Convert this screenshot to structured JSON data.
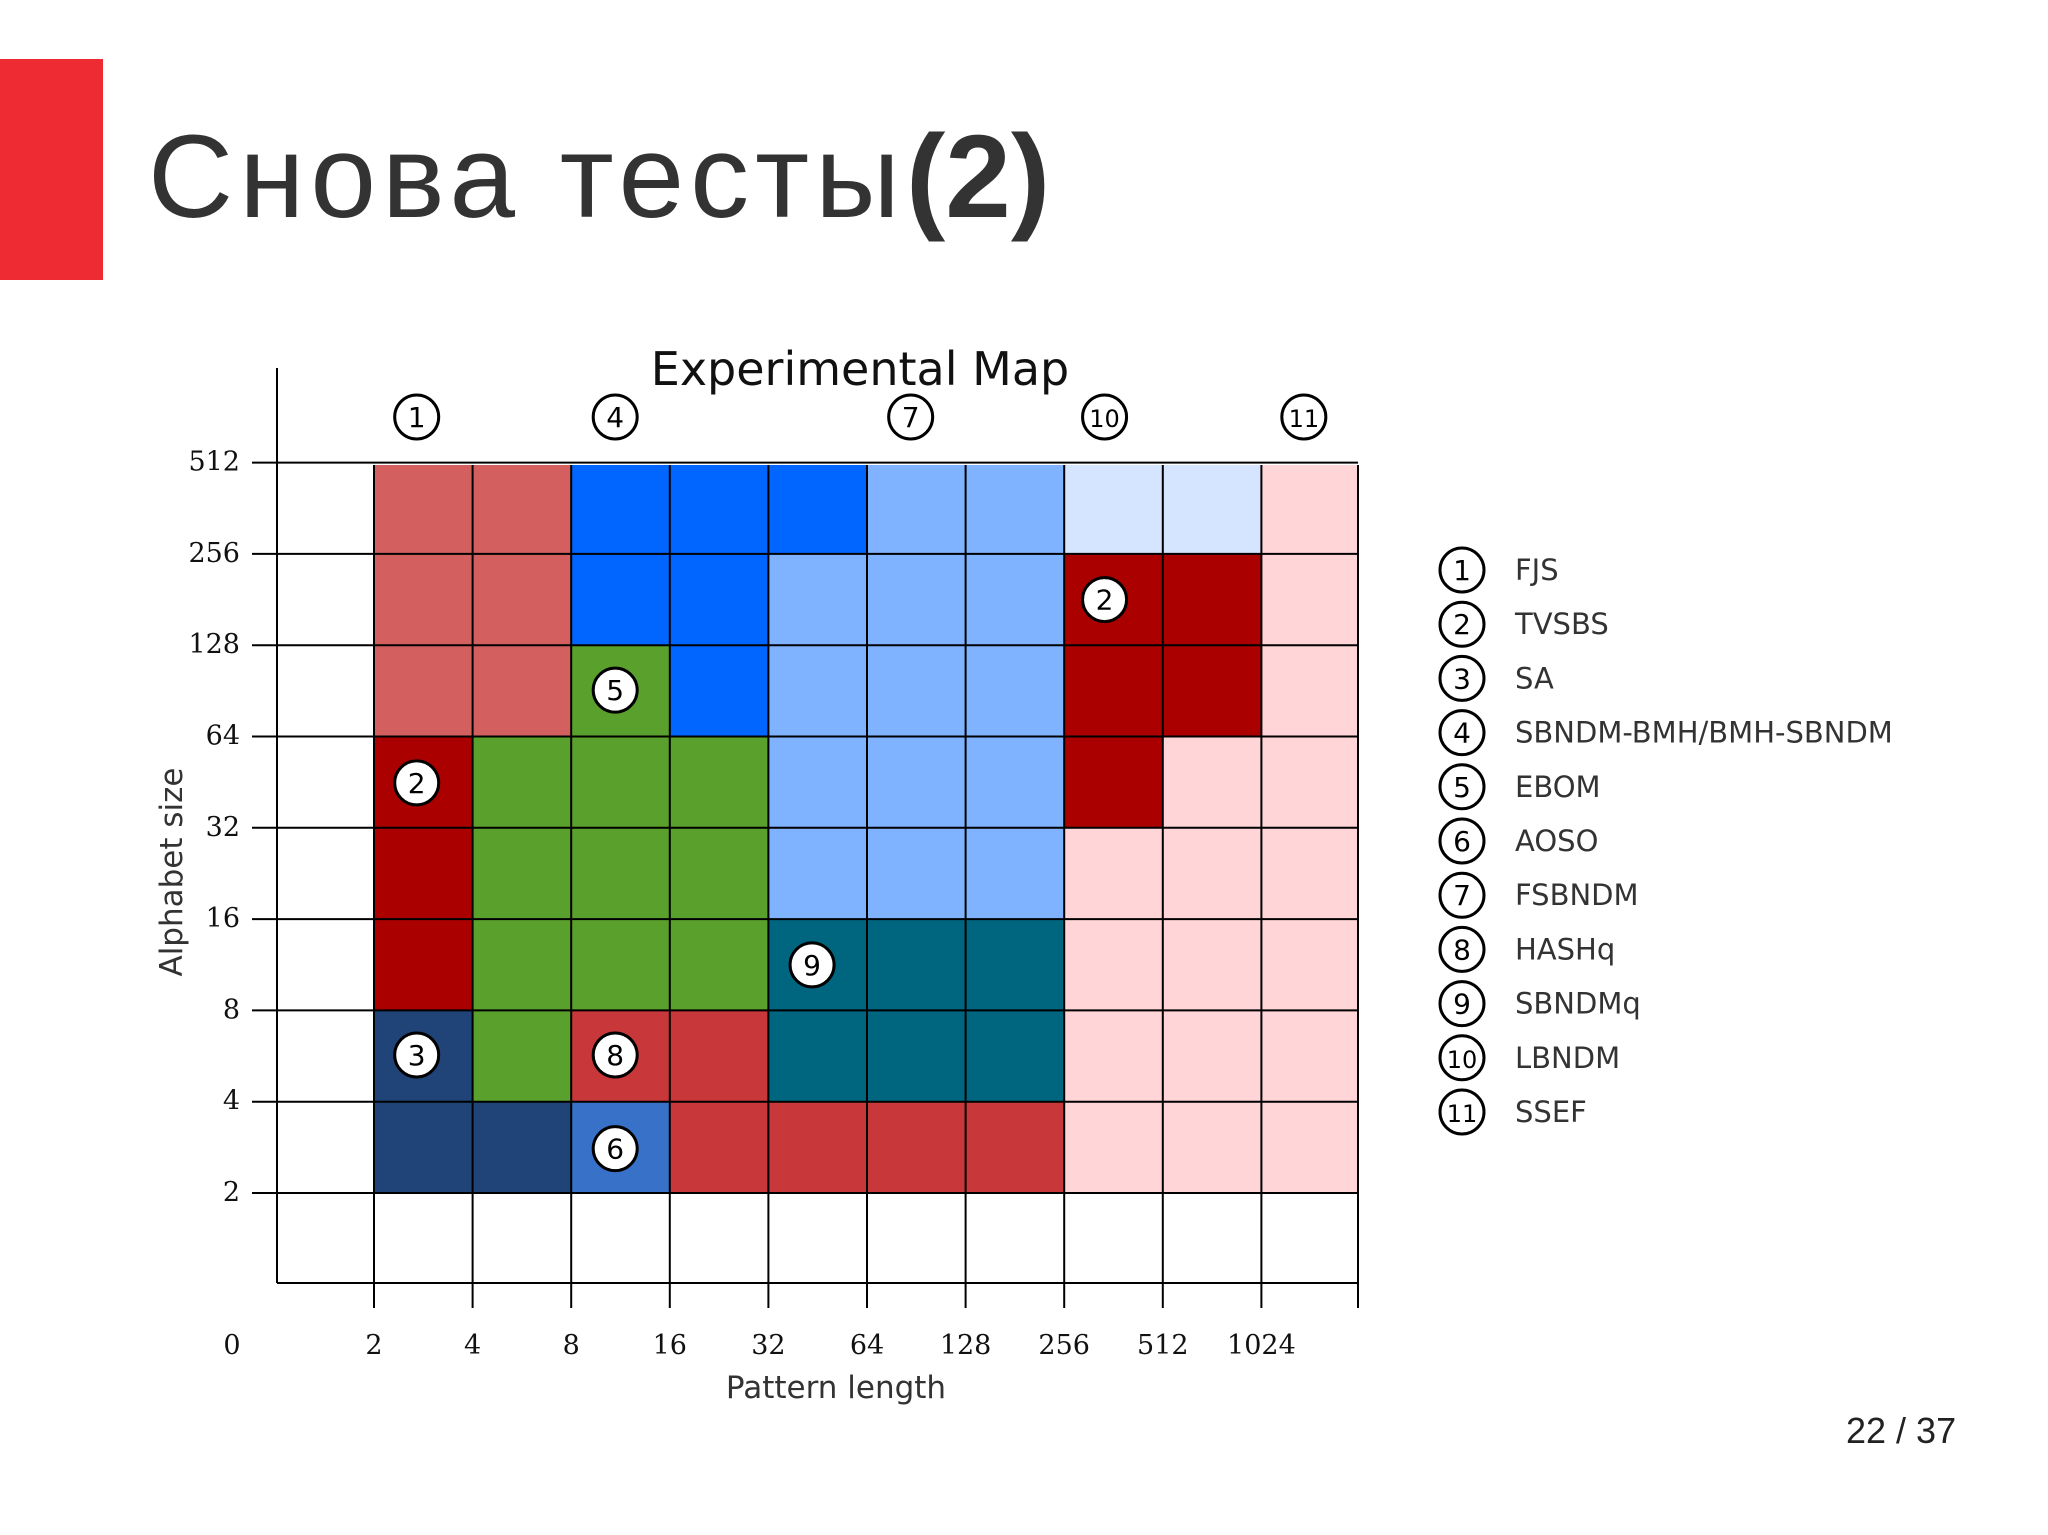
{
  "slide": {
    "title_main": "Снова тесты",
    "title_bold": "(2)",
    "page_number": "22 / 37",
    "accent_color": "#ee2b32"
  },
  "chart_data": {
    "type": "heatmap",
    "title": "Experimental Map",
    "xlabel": "Pattern length",
    "ylabel": "Alphabet size",
    "x_ticks": [
      "0",
      "2",
      "4",
      "8",
      "16",
      "32",
      "64",
      "128",
      "256",
      "512",
      "1024"
    ],
    "y_ticks": [
      "0",
      "2",
      "4",
      "8",
      "16",
      "32",
      "64",
      "128",
      "256",
      "512"
    ],
    "grid": true,
    "legend_position": "right",
    "algorithms": [
      {
        "id": 1,
        "label": "1",
        "name": "FJS",
        "color": "#d35f5f"
      },
      {
        "id": 2,
        "label": "2",
        "name": "TVSBS",
        "color": "#aa0000"
      },
      {
        "id": 3,
        "label": "3",
        "name": "SA",
        "color": "#214478"
      },
      {
        "id": 4,
        "label": "4",
        "name": "SBNDM-BMH/BMH-SBNDM",
        "color": "#0066ff"
      },
      {
        "id": 5,
        "label": "5",
        "name": "EBOM",
        "color": "#5aa02c"
      },
      {
        "id": 6,
        "label": "6",
        "name": "AOSO",
        "color": "#3771c8"
      },
      {
        "id": 7,
        "label": "7",
        "name": "FSBNDM",
        "color": "#80b3ff"
      },
      {
        "id": 8,
        "label": "8",
        "name": "HASHq",
        "color": "#c8373a"
      },
      {
        "id": 9,
        "label": "9",
        "name": "SBNDMq",
        "color": "#006680"
      },
      {
        "id": 10,
        "label": "10",
        "name": "LBNDM",
        "color": "#d5e5ff"
      },
      {
        "id": 11,
        "label": "11",
        "name": "SSEF",
        "color": "#ffd5d8"
      }
    ],
    "regions": [
      {
        "algo": 1,
        "x": [
          2,
          8
        ],
        "y": [
          64,
          1024
        ]
      },
      {
        "algo": 4,
        "x": [
          8,
          64
        ],
        "y": [
          256,
          1024
        ]
      },
      {
        "algo": 4,
        "x": [
          8,
          32
        ],
        "y": [
          128,
          256
        ]
      },
      {
        "algo": 4,
        "x": [
          16,
          32
        ],
        "y": [
          64,
          128
        ]
      },
      {
        "algo": 5,
        "x": [
          8,
          16
        ],
        "y": [
          64,
          128
        ]
      },
      {
        "algo": 5,
        "x": [
          4,
          32
        ],
        "y": [
          8,
          64
        ]
      },
      {
        "algo": 5,
        "x": [
          4,
          8
        ],
        "y": [
          4,
          8
        ]
      },
      {
        "algo": 7,
        "x": [
          64,
          256
        ],
        "y": [
          256,
          1024
        ]
      },
      {
        "algo": 7,
        "x": [
          32,
          256
        ],
        "y": [
          16,
          256
        ]
      },
      {
        "algo": 10,
        "x": [
          256,
          1024
        ],
        "y": [
          256,
          1024
        ]
      },
      {
        "algo": 11,
        "x": [
          1024,
          2048
        ],
        "y": [
          2,
          1024
        ]
      },
      {
        "algo": 11,
        "x": [
          512,
          1024
        ],
        "y": [
          2,
          64
        ]
      },
      {
        "algo": 11,
        "x": [
          256,
          512
        ],
        "y": [
          2,
          32
        ]
      },
      {
        "algo": 2,
        "x": [
          256,
          1024
        ],
        "y": [
          64,
          256
        ]
      },
      {
        "algo": 2,
        "x": [
          256,
          512
        ],
        "y": [
          32,
          64
        ]
      },
      {
        "algo": 2,
        "x": [
          2,
          4
        ],
        "y": [
          8,
          64
        ]
      },
      {
        "algo": 9,
        "x": [
          32,
          256
        ],
        "y": [
          4,
          16
        ]
      },
      {
        "algo": 8,
        "x": [
          8,
          32
        ],
        "y": [
          4,
          8
        ]
      },
      {
        "algo": 8,
        "x": [
          16,
          256
        ],
        "y": [
          2,
          4
        ]
      },
      {
        "algo": 3,
        "x": [
          2,
          4
        ],
        "y": [
          2,
          8
        ]
      },
      {
        "algo": 3,
        "x": [
          4,
          8
        ],
        "y": [
          2,
          4
        ]
      },
      {
        "algo": 6,
        "x": [
          8,
          16
        ],
        "y": [
          2,
          4
        ]
      }
    ],
    "markers": [
      {
        "label": "1",
        "x": 2.7,
        "y": 724
      },
      {
        "label": "4",
        "x": 10.9,
        "y": 724
      },
      {
        "label": "7",
        "x": 87,
        "y": 724
      },
      {
        "label": "10",
        "x": 340,
        "y": 724
      },
      {
        "label": "11",
        "x": 1380,
        "y": 724
      },
      {
        "label": "2",
        "x": 340,
        "y": 181
      },
      {
        "label": "5",
        "x": 10.9,
        "y": 91
      },
      {
        "label": "2",
        "x": 2.7,
        "y": 45
      },
      {
        "label": "9",
        "x": 43.5,
        "y": 11.3
      },
      {
        "label": "3",
        "x": 2.7,
        "y": 5.7
      },
      {
        "label": "8",
        "x": 10.9,
        "y": 5.7
      },
      {
        "label": "6",
        "x": 10.9,
        "y": 2.8
      }
    ]
  }
}
